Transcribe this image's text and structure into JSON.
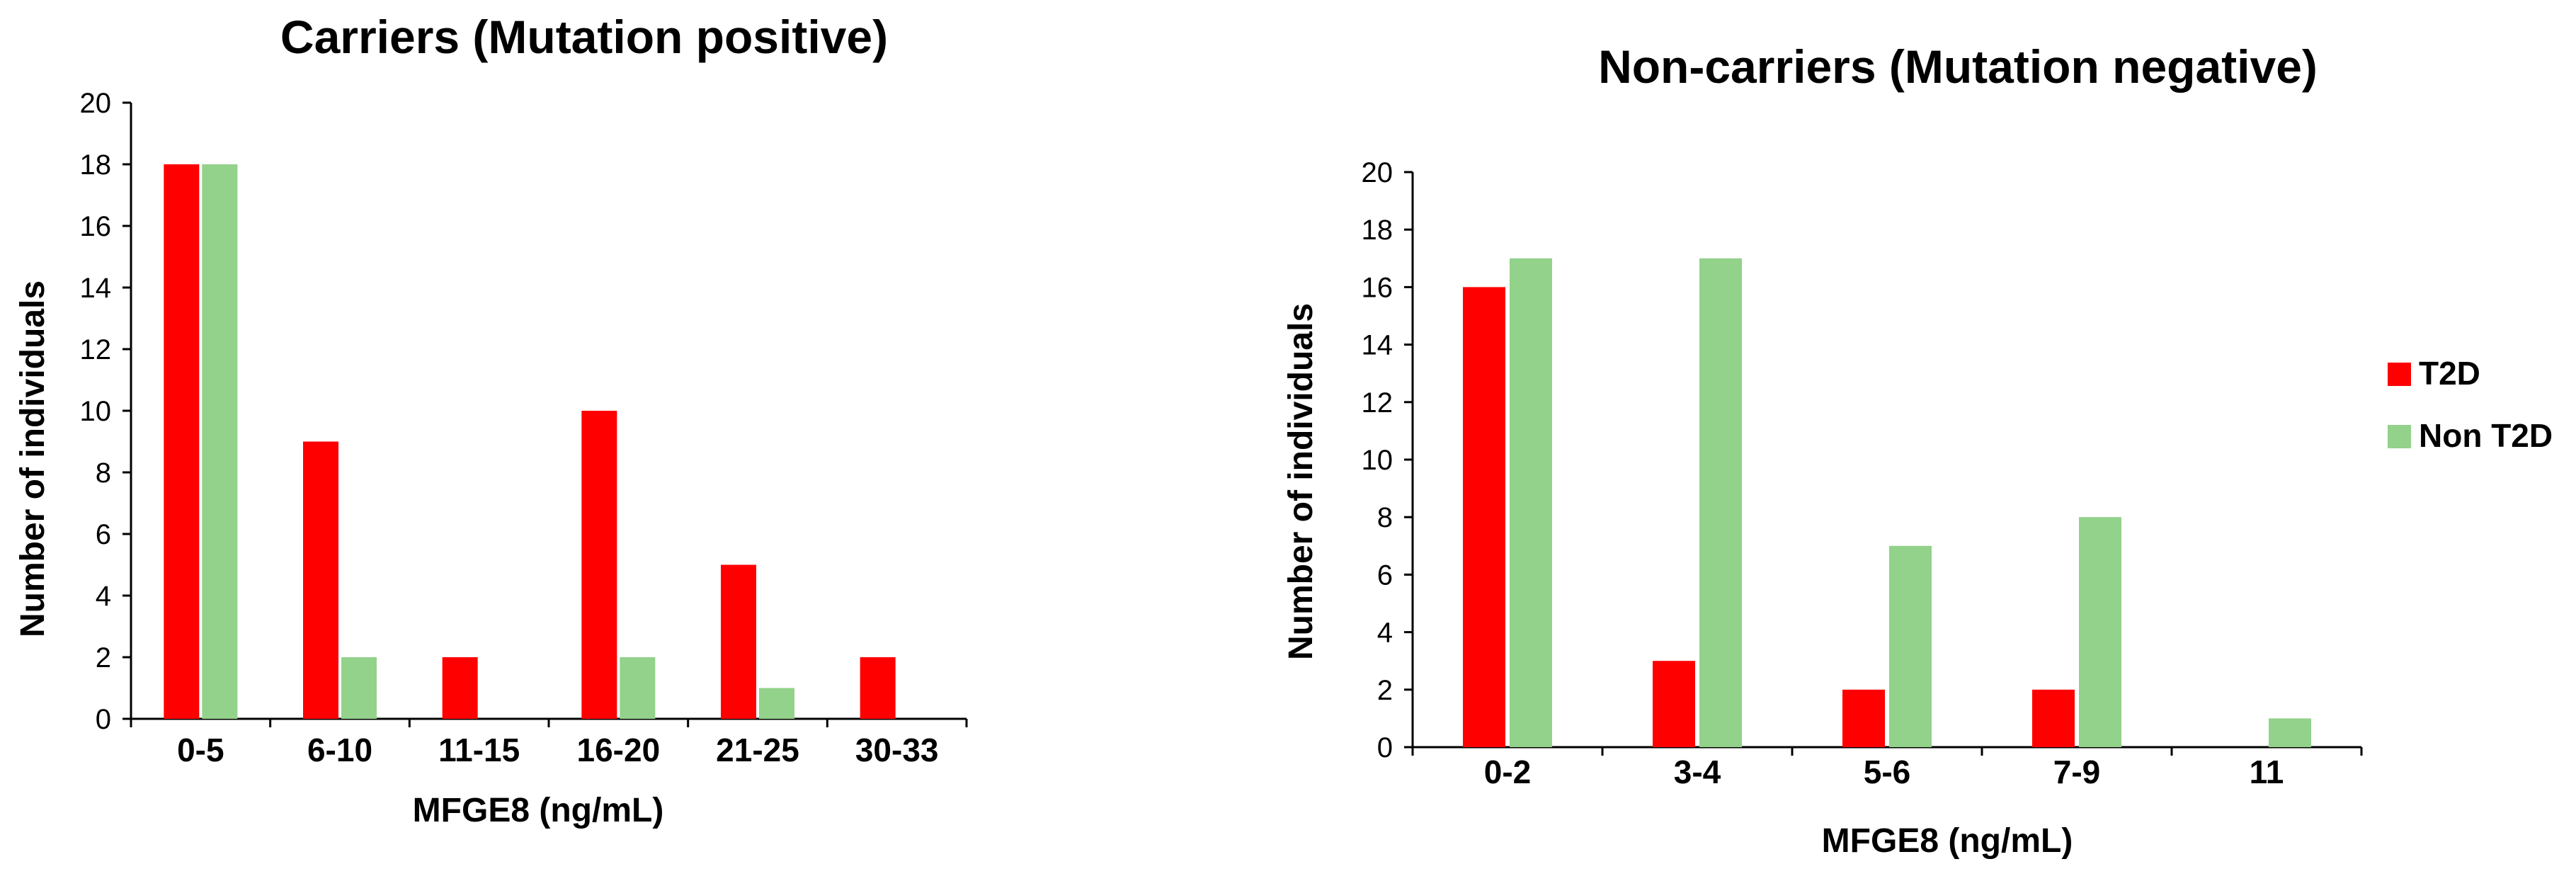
{
  "chart_data": [
    {
      "type": "bar",
      "title": "Carriers (Mutation positive)",
      "xlabel": "MFGE8 (ng/mL)",
      "ylabel": "Number of individuals",
      "ylim": [
        0,
        20
      ],
      "yticks": [
        "0",
        "2",
        "4",
        "6",
        "8",
        "10",
        "12",
        "14",
        "16",
        "18",
        "20"
      ],
      "categories": [
        "0-5",
        "6-10",
        "11-15",
        "16-20",
        "21-25",
        "30-33"
      ],
      "series": [
        {
          "name": "T2D",
          "color": "#ff0000",
          "values": [
            18,
            9,
            2,
            10,
            5,
            2
          ]
        },
        {
          "name": "Non T2D",
          "color": "#92d28a",
          "values": [
            18,
            2,
            0,
            2,
            1,
            0
          ]
        }
      ],
      "grid": false
    },
    {
      "type": "bar",
      "title": "Non-carriers (Mutation negative)",
      "xlabel": "MFGE8 (ng/mL)",
      "ylabel": "Number of individuals",
      "ylim": [
        0,
        20
      ],
      "yticks": [
        "0",
        "2",
        "4",
        "6",
        "8",
        "10",
        "12",
        "14",
        "16",
        "18",
        "20"
      ],
      "categories": [
        "0-2",
        "3-4",
        "5-6",
        "7-9",
        "11"
      ],
      "series": [
        {
          "name": "T2D",
          "color": "#ff0000",
          "values": [
            16,
            3,
            2,
            2,
            0
          ]
        },
        {
          "name": "Non T2D",
          "color": "#92d28a",
          "values": [
            17,
            17,
            7,
            8,
            1
          ]
        }
      ],
      "grid": false,
      "legend": {
        "position": "right",
        "entries": [
          "T2D",
          "Non T2D"
        ]
      }
    }
  ]
}
